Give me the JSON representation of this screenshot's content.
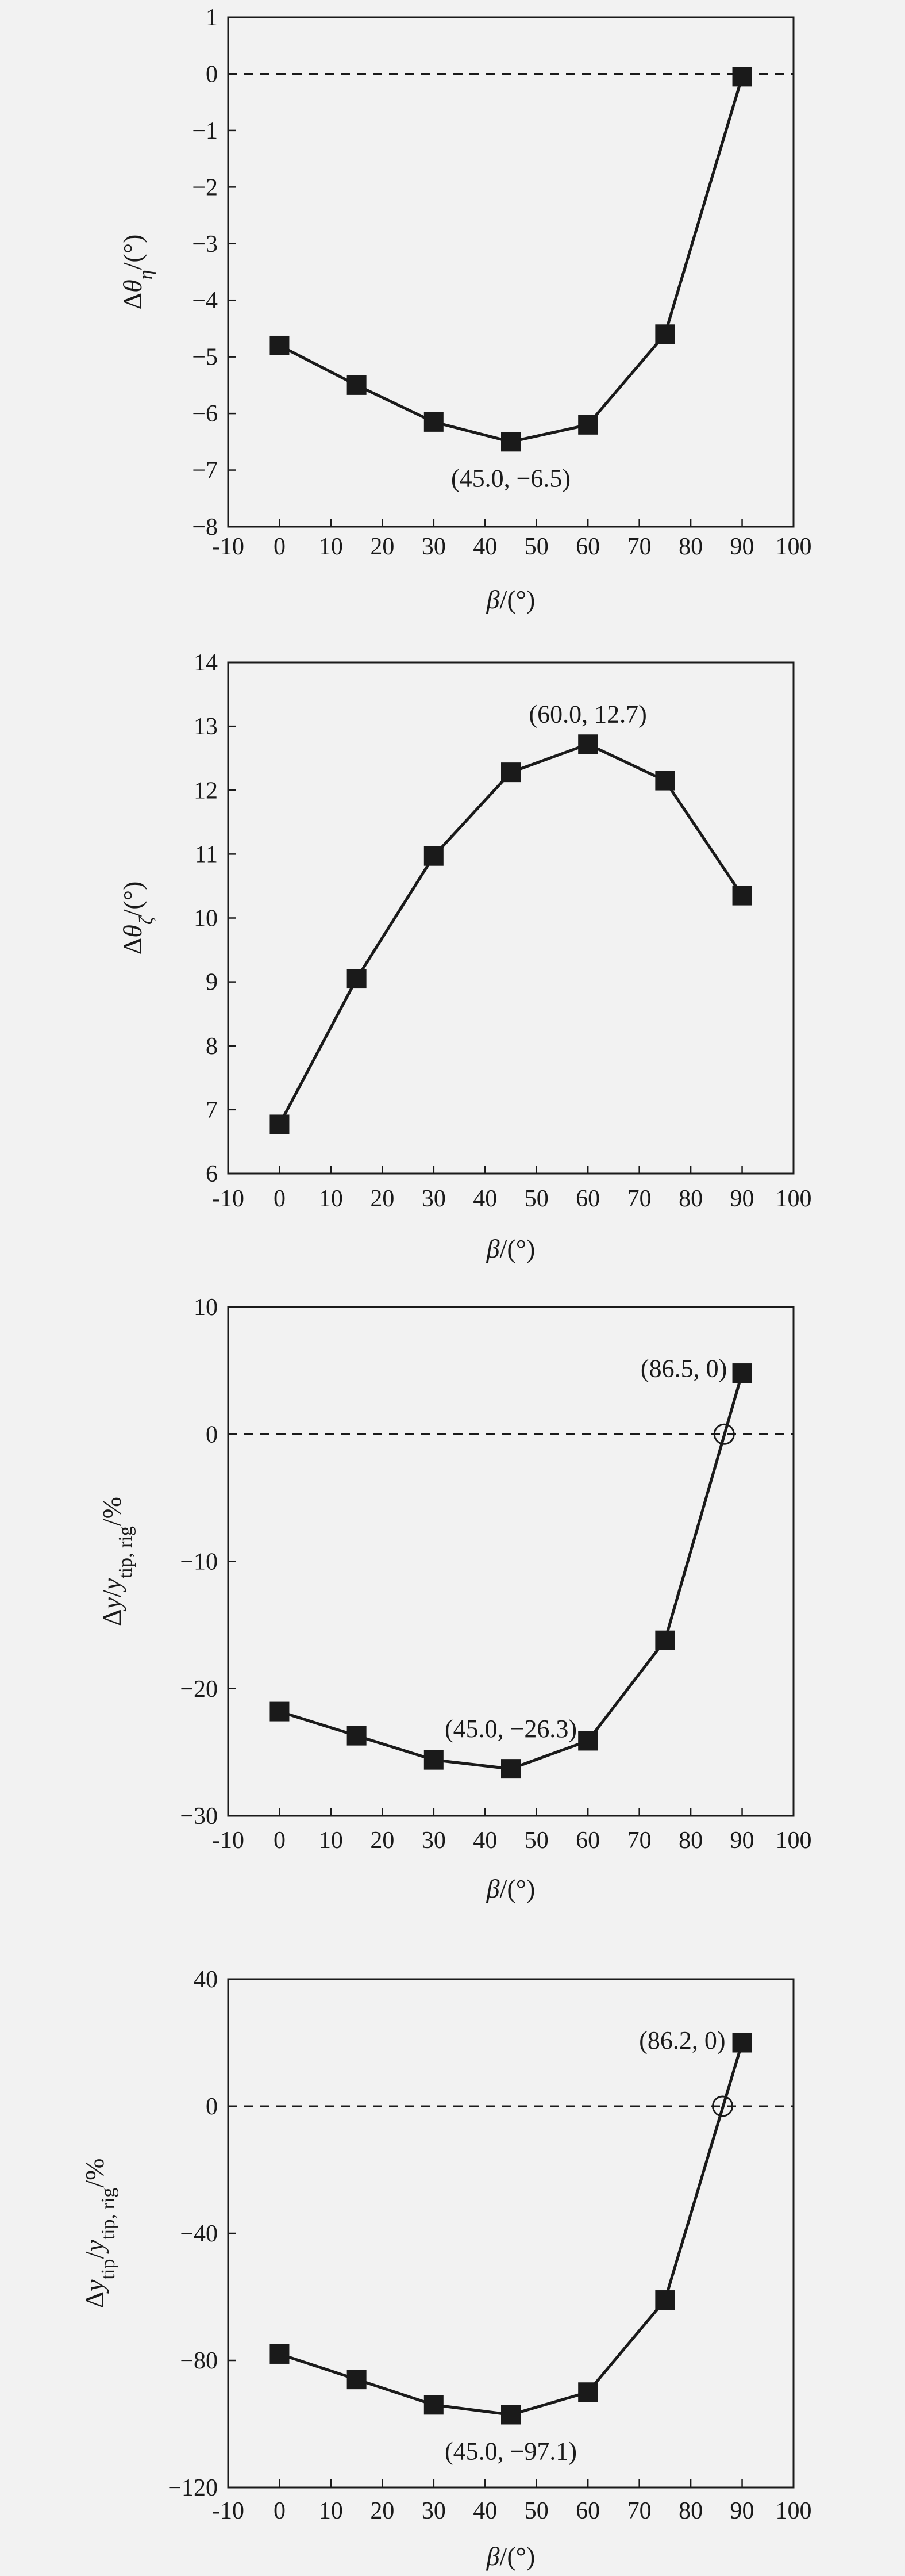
{
  "chart_data": [
    {
      "type": "line",
      "xlabel": "β/(°)",
      "ylabel": "Δθη/(°)",
      "xlim": [
        -10,
        100
      ],
      "ylim": [
        -8,
        1
      ],
      "xticks": [
        -10,
        0,
        10,
        20,
        30,
        40,
        50,
        60,
        70,
        80,
        90,
        100
      ],
      "yticks": [
        1,
        0,
        -1,
        -2,
        -3,
        -4,
        -5,
        -6,
        -7,
        -8
      ],
      "yticklabels": [
        "1",
        "0",
        "−1",
        "−2",
        "−3",
        "−4",
        "−5",
        "−6",
        "−7",
        "−8"
      ],
      "x": [
        0,
        15,
        30,
        45,
        60,
        75,
        90
      ],
      "y": [
        -4.8,
        -5.5,
        -6.15,
        -6.5,
        -6.2,
        -4.6,
        -0.05
      ],
      "reference_line": 0,
      "annotations": [
        {
          "text": "(45.0, −6.5)",
          "x": 45,
          "y": -6.5
        }
      ],
      "open_markers": []
    },
    {
      "type": "line",
      "xlabel": "β/(°)",
      "ylabel": "Δθζ/(°)",
      "xlim": [
        -10,
        100
      ],
      "ylim": [
        6,
        14
      ],
      "xticks": [
        -10,
        0,
        10,
        20,
        30,
        40,
        50,
        60,
        70,
        80,
        90,
        100
      ],
      "yticks": [
        14,
        13,
        12,
        11,
        10,
        9,
        8,
        7,
        6
      ],
      "yticklabels": [
        "14",
        "13",
        "12",
        "11",
        "10",
        "9",
        "8",
        "7",
        "6"
      ],
      "x": [
        0,
        15,
        30,
        45,
        60,
        75,
        90
      ],
      "y": [
        6.77,
        9.05,
        10.97,
        12.28,
        12.72,
        12.15,
        10.35
      ],
      "reference_line": null,
      "annotations": [
        {
          "text": "(60.0, 12.7)",
          "x": 60,
          "y": 12.7
        }
      ],
      "open_markers": []
    },
    {
      "type": "line",
      "xlabel": "β/(°)",
      "ylabel": "Δy/ytip, rig/%",
      "xlim": [
        -10,
        100
      ],
      "ylim": [
        -30,
        10
      ],
      "xticks": [
        -10,
        0,
        10,
        20,
        30,
        40,
        50,
        60,
        70,
        80,
        90,
        100
      ],
      "yticks": [
        10,
        0,
        -10,
        -20,
        -30
      ],
      "yticklabels": [
        "10",
        "0",
        "−10",
        "−20",
        "−30"
      ],
      "x": [
        0,
        15,
        30,
        45,
        60,
        75,
        90
      ],
      "y": [
        -21.8,
        -23.7,
        -25.6,
        -26.3,
        -24.1,
        -16.2,
        4.8
      ],
      "reference_line": 0,
      "annotations": [
        {
          "text": "(45.0, −26.3)",
          "x": 45,
          "y": -26.3
        },
        {
          "text": "(86.5, 0)",
          "x": 86.5,
          "y": 0
        }
      ],
      "open_markers": [
        {
          "x": 86.5,
          "y": 0
        }
      ]
    },
    {
      "type": "line",
      "xlabel": "β/(°)",
      "ylabel": "Δytip/ytip, rig/%",
      "xlim": [
        -10,
        100
      ],
      "ylim": [
        -120,
        40
      ],
      "xticks": [
        -10,
        0,
        10,
        20,
        30,
        40,
        50,
        60,
        70,
        80,
        90,
        100
      ],
      "yticks": [
        40,
        0,
        -40,
        -80,
        -120
      ],
      "yticklabels": [
        "40",
        "0",
        "−40",
        "−80",
        "−120"
      ],
      "x": [
        0,
        15,
        30,
        45,
        60,
        75,
        90
      ],
      "y": [
        -78,
        -86,
        -94,
        -97.1,
        -90,
        -61,
        20
      ],
      "reference_line": 0,
      "annotations": [
        {
          "text": "(45.0, −97.1)",
          "x": 45,
          "y": -97.1
        },
        {
          "text": "(86.2, 0)",
          "x": 86.2,
          "y": 0
        }
      ],
      "open_markers": [
        {
          "x": 86.2,
          "y": 0
        }
      ]
    }
  ]
}
